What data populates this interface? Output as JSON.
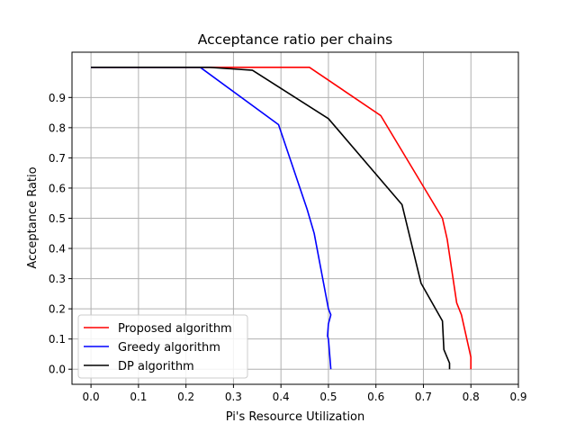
{
  "chart_data": {
    "type": "line",
    "title": "Acceptance ratio per chains",
    "xlabel": "Pi's Resource Utilization",
    "ylabel": "Acceptance Ratio",
    "xlim": [
      -0.04,
      0.9
    ],
    "ylim": [
      -0.05,
      1.05
    ],
    "xticks": [
      "0.0",
      "0.1",
      "0.2",
      "0.3",
      "0.4",
      "0.5",
      "0.6",
      "0.7",
      "0.8",
      "0.9"
    ],
    "yticks": [
      "0.0",
      "0.1",
      "0.2",
      "0.3",
      "0.4",
      "0.5",
      "0.6",
      "0.7",
      "0.8",
      "0.9"
    ],
    "xtick_values": [
      0.0,
      0.1,
      0.2,
      0.3,
      0.4,
      0.5,
      0.6,
      0.7,
      0.8,
      0.9
    ],
    "ytick_values": [
      0.0,
      0.1,
      0.2,
      0.3,
      0.4,
      0.5,
      0.6,
      0.7,
      0.8,
      0.9
    ],
    "grid": true,
    "legend_position": "lower-left",
    "series": [
      {
        "name": "Proposed algorithm",
        "color": "#ff0000",
        "x": [
          0.0,
          0.23,
          0.46,
          0.61,
          0.74,
          0.75,
          0.77,
          0.78,
          0.8,
          0.8
        ],
        "y": [
          1.0,
          1.0,
          1.0,
          0.84,
          0.5,
          0.43,
          0.22,
          0.18,
          0.04,
          0.0
        ]
      },
      {
        "name": "Greedy algorithm",
        "color": "#0000ff",
        "x": [
          0.0,
          0.23,
          0.395,
          0.455,
          0.47,
          0.5,
          0.505,
          0.5,
          0.498,
          0.5,
          0.502,
          0.505
        ],
        "y": [
          1.0,
          1.0,
          0.81,
          0.53,
          0.45,
          0.2,
          0.18,
          0.15,
          0.11,
          0.1,
          0.06,
          0.0
        ]
      },
      {
        "name": "DP algorithm",
        "color": "#000000",
        "x": [
          0.0,
          0.25,
          0.34,
          0.5,
          0.655,
          0.695,
          0.74,
          0.743,
          0.755,
          0.755
        ],
        "y": [
          1.0,
          1.0,
          0.99,
          0.83,
          0.545,
          0.285,
          0.16,
          0.065,
          0.02,
          0.0
        ]
      }
    ]
  }
}
